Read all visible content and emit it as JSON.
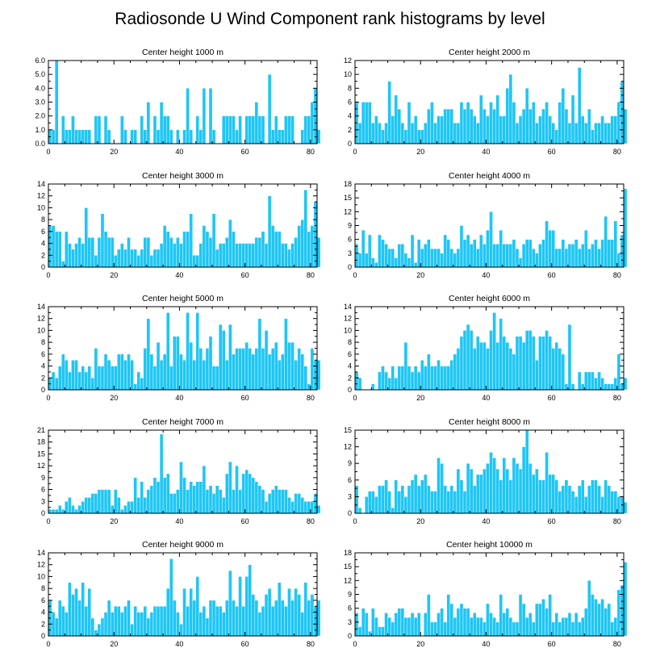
{
  "figure": {
    "title": "Radiosonde U Wind Component rank histograms by level",
    "bar_color": "#1ec6f6"
  },
  "chart_data": [
    {
      "type": "bar",
      "title": "Center height 1000 m",
      "xlim": [
        0,
        82
      ],
      "xticks": [
        0,
        20,
        40,
        60,
        80
      ],
      "ylim": [
        0,
        6
      ],
      "yticks": [
        "0.0",
        "1.0",
        "2.0",
        "3.0",
        "4.0",
        "5.0",
        "6.0"
      ],
      "values": [
        1,
        1,
        6,
        0,
        2,
        1,
        1,
        2,
        1,
        1,
        1,
        1,
        1,
        0,
        2,
        2,
        0,
        2,
        1,
        0,
        0,
        0,
        2,
        1,
        0,
        1,
        1,
        0,
        2,
        1,
        3,
        0,
        2,
        1,
        3,
        2,
        2,
        1,
        0,
        1,
        0,
        1,
        4,
        1,
        0,
        2,
        1,
        4,
        0,
        4,
        1,
        0,
        0,
        2,
        2,
        2,
        2,
        1,
        2,
        0,
        2,
        2,
        2,
        3,
        2,
        2,
        0,
        5,
        1,
        2,
        1,
        1,
        2,
        2,
        2,
        0,
        0,
        1,
        2,
        2,
        3,
        4,
        1
      ]
    },
    {
      "type": "bar",
      "title": "Center height 2000 m",
      "xlim": [
        0,
        82
      ],
      "xticks": [
        0,
        20,
        40,
        60,
        80
      ],
      "ylim": [
        0,
        12
      ],
      "yticks": [
        "0",
        "2",
        "4",
        "6",
        "8",
        "10",
        "12"
      ],
      "values": [
        6,
        3,
        6,
        6,
        6,
        3,
        4,
        3,
        2,
        3,
        9,
        4,
        7,
        5,
        3,
        2,
        6,
        3,
        4,
        2,
        2,
        3,
        5,
        6,
        3,
        4,
        4,
        5,
        5,
        5,
        3,
        3,
        6,
        5,
        6,
        5,
        4,
        3,
        7,
        5,
        4,
        6,
        5,
        7,
        4,
        4,
        8,
        10,
        6,
        3,
        4,
        5,
        8,
        5,
        6,
        3,
        4,
        5,
        6,
        4,
        3,
        2,
        6,
        8,
        5,
        3,
        7,
        3,
        11,
        4,
        3,
        5,
        2,
        3,
        3,
        4,
        3,
        3,
        4,
        4,
        6,
        9,
        5
      ]
    },
    {
      "type": "bar",
      "title": "Center height 3000 m",
      "xlim": [
        0,
        82
      ],
      "xticks": [
        0,
        20,
        40,
        60,
        80
      ],
      "ylim": [
        0,
        14
      ],
      "yticks": [
        "0",
        "2",
        "4",
        "6",
        "8",
        "10",
        "12",
        "14"
      ],
      "values": [
        7,
        7,
        6,
        6,
        1,
        6,
        4,
        3,
        4,
        5,
        4,
        10,
        5,
        5,
        2,
        5,
        9,
        6,
        5,
        5,
        2,
        3,
        4,
        3,
        5,
        3,
        3,
        2,
        3,
        5,
        5,
        2,
        3,
        3,
        4,
        7,
        6,
        5,
        4,
        5,
        4,
        6,
        6,
        9,
        2,
        2,
        4,
        7,
        6,
        5,
        9,
        3,
        4,
        4,
        5,
        8,
        6,
        4,
        4,
        4,
        4,
        4,
        4,
        5,
        5,
        6,
        4,
        12,
        7,
        6,
        6,
        4,
        4,
        3,
        4,
        5,
        7,
        8,
        13,
        6,
        7,
        11,
        5
      ]
    },
    {
      "type": "bar",
      "title": "Center height 4000 m",
      "xlim": [
        0,
        82
      ],
      "xticks": [
        0,
        20,
        40,
        60,
        80
      ],
      "ylim": [
        0,
        18
      ],
      "yticks": [
        "0",
        "3",
        "6",
        "9",
        "12",
        "15",
        "18"
      ],
      "values": [
        5,
        3,
        8,
        3,
        7,
        2,
        1,
        7,
        6,
        5,
        4,
        4,
        2,
        5,
        5,
        3,
        2,
        7,
        1,
        6,
        4,
        5,
        6,
        4,
        4,
        4,
        3,
        7,
        6,
        4,
        3,
        4,
        9,
        6,
        7,
        5,
        6,
        4,
        7,
        5,
        8,
        12,
        5,
        5,
        8,
        5,
        5,
        5,
        6,
        4,
        2,
        5,
        6,
        6,
        4,
        3,
        5,
        6,
        10,
        8,
        8,
        4,
        4,
        6,
        4,
        5,
        5,
        6,
        4,
        5,
        8,
        4,
        5,
        6,
        4,
        6,
        11,
        6,
        6,
        10,
        3,
        7,
        17
      ]
    },
    {
      "type": "bar",
      "title": "Center height 5000 m",
      "xlim": [
        0,
        82
      ],
      "xticks": [
        0,
        20,
        40,
        60,
        80
      ],
      "ylim": [
        0,
        14
      ],
      "yticks": [
        "0",
        "2",
        "4",
        "6",
        "8",
        "10",
        "12",
        "14"
      ],
      "values": [
        2,
        3,
        2,
        4,
        6,
        5,
        3,
        5,
        5,
        3,
        4,
        3,
        4,
        2,
        7,
        4,
        4,
        6,
        5,
        4,
        4,
        6,
        6,
        5,
        6,
        5,
        1,
        3,
        2,
        7,
        12,
        6,
        4,
        8,
        5,
        6,
        13,
        4,
        9,
        9,
        6,
        5,
        13,
        8,
        5,
        13,
        7,
        5,
        7,
        9,
        4,
        4,
        11,
        10,
        5,
        11,
        6,
        7,
        7,
        7,
        8,
        7,
        6,
        7,
        12,
        7,
        10,
        6,
        7,
        8,
        5,
        6,
        12,
        8,
        8,
        5,
        7,
        6,
        4,
        1,
        7,
        5,
        5
      ]
    },
    {
      "type": "bar",
      "title": "Center height 6000 m",
      "xlim": [
        0,
        82
      ],
      "xticks": [
        0,
        20,
        40,
        60,
        80
      ],
      "ylim": [
        0,
        14
      ],
      "yticks": [
        "0",
        "2",
        "4",
        "6",
        "8",
        "10",
        "12",
        "14"
      ],
      "values": [
        3,
        2,
        0,
        0,
        0,
        1,
        0,
        3,
        4,
        3,
        2,
        4,
        2,
        4,
        4,
        8,
        4,
        3,
        4,
        3,
        5,
        4,
        6,
        4,
        4,
        5,
        4,
        4,
        4,
        5,
        6,
        7,
        9,
        10,
        11,
        10,
        7,
        9,
        8,
        8,
        7,
        10,
        13,
        8,
        12,
        9,
        8,
        7,
        6,
        9,
        9,
        8,
        10,
        10,
        9,
        5,
        9,
        9,
        10,
        9,
        7,
        8,
        7,
        6,
        1,
        11,
        1,
        0,
        3,
        1,
        3,
        3,
        3,
        2,
        3,
        2,
        1,
        1,
        1,
        2,
        6,
        1,
        2
      ]
    },
    {
      "type": "bar",
      "title": "Center height 7000 m",
      "xlim": [
        0,
        82
      ],
      "xticks": [
        0,
        20,
        40,
        60,
        80
      ],
      "ylim": [
        0,
        21
      ],
      "yticks": [
        "0",
        "3",
        "6",
        "9",
        "12",
        "15",
        "18",
        "21"
      ],
      "values": [
        1,
        1,
        1,
        2,
        1,
        3,
        4,
        2,
        1,
        2,
        3,
        4,
        4,
        5,
        5,
        6,
        6,
        6,
        6,
        2,
        6,
        4,
        1,
        2,
        3,
        3,
        9,
        4,
        8,
        4,
        6,
        7,
        9,
        8,
        20,
        9,
        10,
        5,
        5,
        6,
        13,
        9,
        6,
        8,
        7,
        8,
        8,
        12,
        6,
        7,
        5,
        7,
        6,
        4,
        10,
        13,
        6,
        12,
        6,
        10,
        11,
        10,
        9,
        8,
        7,
        6,
        3,
        5,
        6,
        7,
        6,
        6,
        6,
        4,
        3,
        5,
        5,
        4,
        3,
        3,
        3,
        5,
        2
      ]
    },
    {
      "type": "bar",
      "title": "Center height 8000 m",
      "xlim": [
        0,
        82
      ],
      "xticks": [
        0,
        20,
        40,
        60,
        80
      ],
      "ylim": [
        0,
        15
      ],
      "yticks": [
        "0",
        "3",
        "6",
        "9",
        "12",
        "15"
      ],
      "values": [
        5,
        1,
        0,
        3,
        4,
        4,
        3,
        5,
        5,
        6,
        4,
        1,
        6,
        4,
        5,
        3,
        5,
        6,
        7,
        5,
        6,
        7,
        5,
        4,
        4,
        10,
        9,
        5,
        4,
        5,
        4,
        8,
        6,
        4,
        9,
        8,
        5,
        7,
        7,
        8,
        9,
        11,
        10,
        8,
        6,
        10,
        8,
        6,
        10,
        9,
        8,
        12,
        15,
        9,
        7,
        8,
        6,
        6,
        11,
        7,
        7,
        6,
        4,
        5,
        6,
        5,
        4,
        3,
        5,
        6,
        3,
        5,
        6,
        6,
        5,
        3,
        6,
        5,
        4,
        4,
        3,
        3,
        2
      ]
    },
    {
      "type": "bar",
      "title": "Center height 9000 m",
      "xlim": [
        0,
        82
      ],
      "xticks": [
        0,
        20,
        40,
        60,
        80
      ],
      "ylim": [
        0,
        14
      ],
      "yticks": [
        "0",
        "2",
        "4",
        "6",
        "8",
        "10",
        "12",
        "14"
      ],
      "values": [
        6,
        4,
        3,
        6,
        5,
        4,
        9,
        7,
        8,
        6,
        9,
        5,
        8,
        3,
        1,
        2,
        3,
        4,
        6,
        4,
        5,
        5,
        4,
        5,
        6,
        2,
        5,
        4,
        4,
        5,
        3,
        4,
        5,
        5,
        5,
        5,
        8,
        13,
        6,
        4,
        2,
        8,
        5,
        8,
        6,
        10,
        4,
        5,
        3,
        6,
        6,
        5,
        5,
        4,
        6,
        11,
        6,
        5,
        10,
        5,
        10,
        12,
        7,
        6,
        4,
        5,
        7,
        8,
        5,
        6,
        9,
        6,
        5,
        8,
        6,
        8,
        7,
        4,
        9,
        6,
        7,
        5,
        6
      ]
    },
    {
      "type": "bar",
      "title": "Center height 10000 m",
      "xlim": [
        0,
        82
      ],
      "xticks": [
        0,
        20,
        40,
        60,
        80
      ],
      "ylim": [
        0,
        18
      ],
      "yticks": [
        "0",
        "3",
        "6",
        "9",
        "12",
        "15",
        "18"
      ],
      "values": [
        5,
        2,
        6,
        5,
        1,
        6,
        4,
        2,
        2,
        5,
        4,
        3,
        5,
        6,
        6,
        4,
        4,
        5,
        4,
        5,
        0,
        5,
        9,
        3,
        3,
        5,
        6,
        3,
        9,
        7,
        4,
        6,
        7,
        6,
        6,
        4,
        5,
        4,
        4,
        3,
        7,
        5,
        4,
        3,
        9,
        5,
        6,
        4,
        3,
        3,
        9,
        7,
        4,
        5,
        3,
        7,
        7,
        8,
        6,
        9,
        3,
        5,
        3,
        4,
        4,
        5,
        3,
        5,
        3,
        4,
        6,
        12,
        9,
        8,
        7,
        8,
        6,
        7,
        3,
        4,
        10,
        11,
        16
      ]
    }
  ]
}
